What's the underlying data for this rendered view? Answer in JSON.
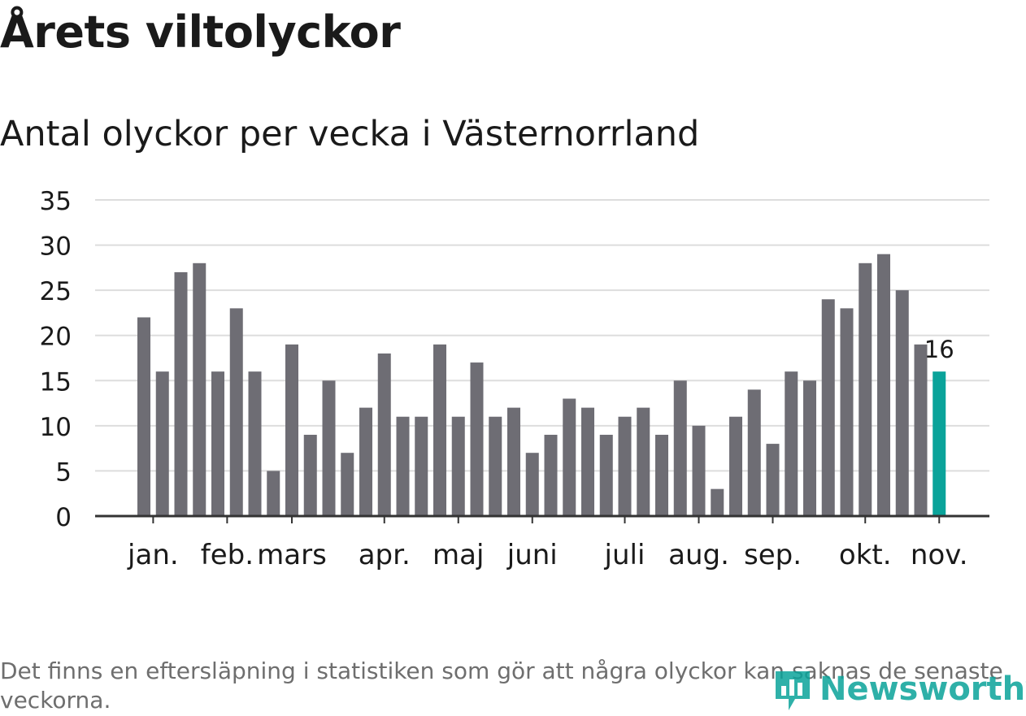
{
  "header": {
    "title": "Årets viltolyckor",
    "subtitle": "Antal olyckor per vecka i Västernorrland"
  },
  "chart_data": {
    "type": "bar",
    "title": "Antal olyckor per vecka i Västernorrland",
    "xlabel": "",
    "ylabel": "",
    "ylim": [
      0,
      35
    ],
    "yticks": [
      0,
      5,
      10,
      15,
      20,
      25,
      30,
      35
    ],
    "grid": true,
    "series": [
      {
        "name": "Antal olyckor",
        "values": [
          22,
          16,
          27,
          28,
          16,
          23,
          16,
          5,
          19,
          9,
          15,
          7,
          12,
          18,
          11,
          11,
          19,
          11,
          17,
          11,
          12,
          7,
          9,
          13,
          12,
          9,
          11,
          12,
          9,
          15,
          10,
          3,
          11,
          14,
          8,
          16,
          15,
          24,
          23,
          28,
          29,
          25,
          19,
          16
        ]
      }
    ],
    "highlight": {
      "index": 43,
      "label": "16"
    },
    "month_ticks": [
      {
        "label": "jan.",
        "bar": 0.5
      },
      {
        "label": "feb.",
        "bar": 4.5
      },
      {
        "label": "mars",
        "bar": 8.0
      },
      {
        "label": "apr.",
        "bar": 13.0
      },
      {
        "label": "maj",
        "bar": 17.0
      },
      {
        "label": "juni",
        "bar": 21.0
      },
      {
        "label": "juli",
        "bar": 26.0
      },
      {
        "label": "aug.",
        "bar": 30.0
      },
      {
        "label": "sep.",
        "bar": 34.0
      },
      {
        "label": "okt.",
        "bar": 39.0
      },
      {
        "label": "nov.",
        "bar": 43.0
      }
    ]
  },
  "colors": {
    "bar": "#6e6d74",
    "highlight": "#0aa39a",
    "grid": "#dddddd",
    "axis": "#333333"
  },
  "footer": {
    "note": "Det finns en eftersläpning i statistiken som gör att några olyckor kan saknas de senaste veckorna.",
    "brand": "Newsworthy"
  }
}
